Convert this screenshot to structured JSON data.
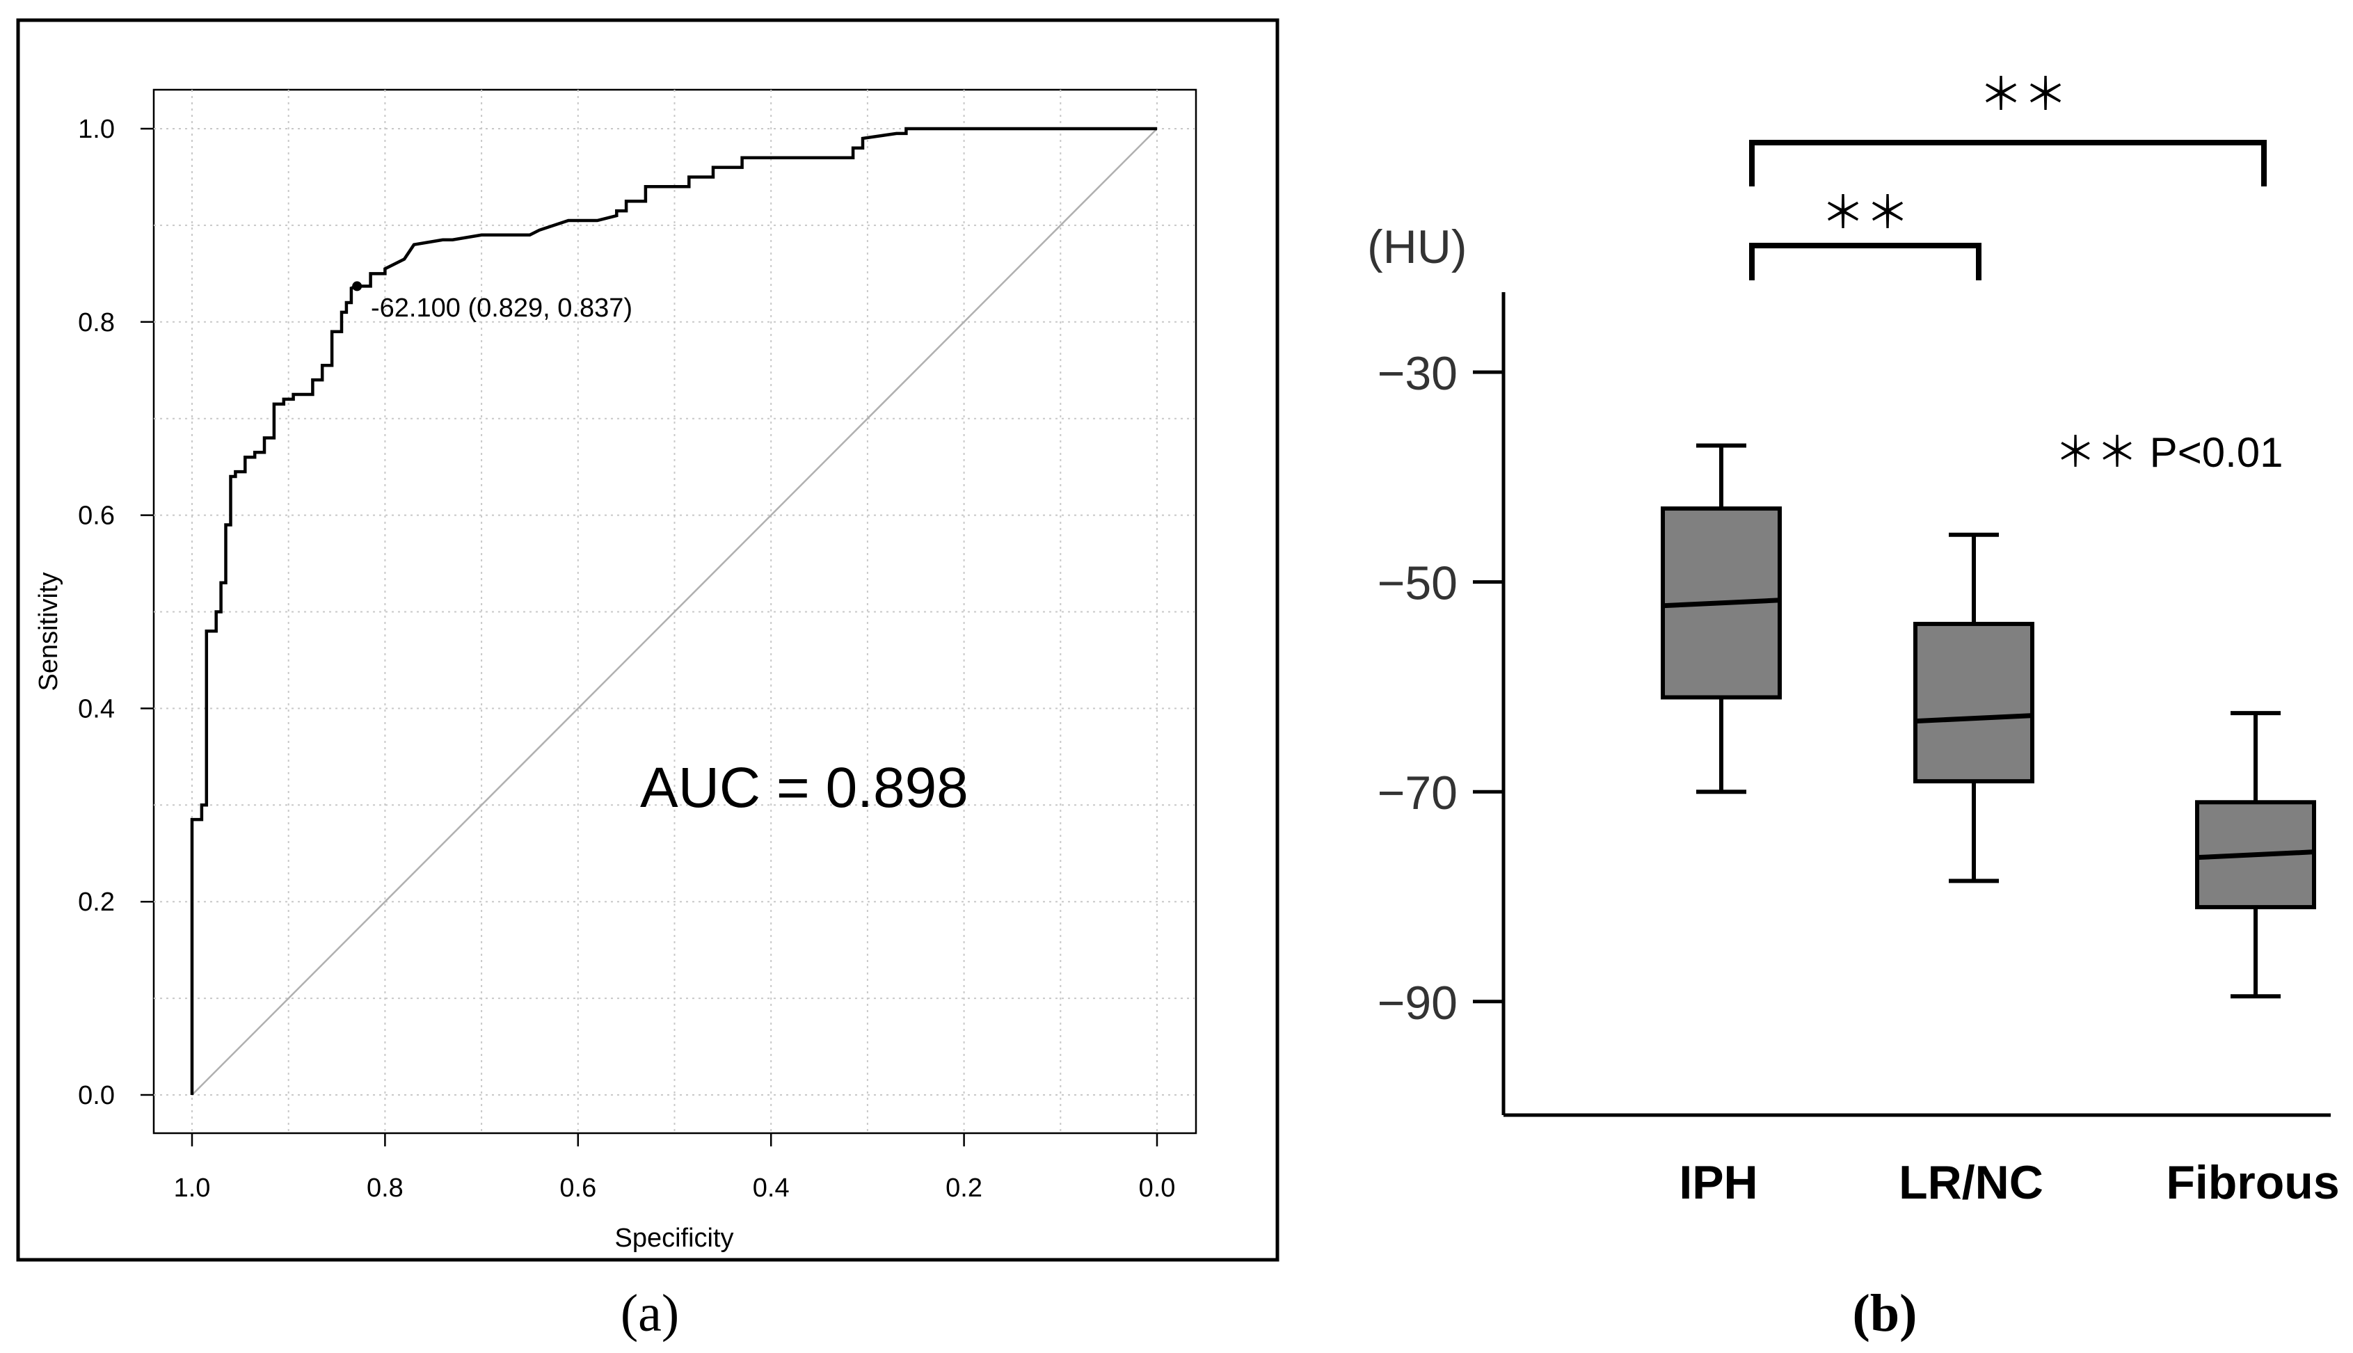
{
  "panel_a": {
    "caption": "(a)",
    "annotation_cutoff": "-62.100 (0.829, 0.837)",
    "auc_text": "AUC = 0.898"
  },
  "panel_b": {
    "caption": "(b)",
    "unit_label": "(HU)",
    "sig_marker_1": "＊＊",
    "sig_marker_2": "＊＊",
    "legend_text": "＊＊ P<0.01"
  },
  "chart_data": [
    {
      "type": "line",
      "xlabel": "Specificity",
      "ylabel": "Sensitivity",
      "xlim": [
        1.0,
        0.0
      ],
      "ylim": [
        0.0,
        1.0
      ],
      "xticks": [
        "1.0",
        "0.8",
        "0.6",
        "0.4",
        "0.2",
        "0.0"
      ],
      "yticks": [
        "0.0",
        "0.2",
        "0.4",
        "0.6",
        "0.8",
        "1.0"
      ],
      "grid": true,
      "x_reversed": true,
      "reference_line": [
        [
          1.0,
          0.0
        ],
        [
          0.0,
          1.0
        ]
      ],
      "cutoff_point": {
        "x": 0.829,
        "y": 0.837
      },
      "auc": 0.898,
      "series": [
        {
          "x": [
            1.0,
            1.0,
            0.99,
            0.99,
            0.985,
            0.985,
            0.975,
            0.975,
            0.97,
            0.97,
            0.965,
            0.965,
            0.96,
            0.96,
            0.955,
            0.955,
            0.945,
            0.945,
            0.935,
            0.935,
            0.925,
            0.925,
            0.915,
            0.915,
            0.905,
            0.905,
            0.895,
            0.895,
            0.875,
            0.875,
            0.865,
            0.865,
            0.855,
            0.855,
            0.845,
            0.845,
            0.84,
            0.84,
            0.835,
            0.835,
            0.829,
            0.815,
            0.815,
            0.8,
            0.8,
            0.78,
            0.77,
            0.74,
            0.73,
            0.7,
            0.65,
            0.64,
            0.61,
            0.58,
            0.56,
            0.56,
            0.55,
            0.55,
            0.53,
            0.53,
            0.485,
            0.485,
            0.46,
            0.46,
            0.43,
            0.43,
            0.315,
            0.315,
            0.305,
            0.305,
            0.27,
            0.26,
            0.26,
            0.0
          ],
          "y": [
            0.0,
            0.285,
            0.285,
            0.3,
            0.3,
            0.48,
            0.48,
            0.5,
            0.5,
            0.53,
            0.53,
            0.59,
            0.59,
            0.64,
            0.64,
            0.645,
            0.645,
            0.66,
            0.66,
            0.665,
            0.665,
            0.68,
            0.68,
            0.715,
            0.715,
            0.72,
            0.72,
            0.725,
            0.725,
            0.74,
            0.74,
            0.755,
            0.755,
            0.79,
            0.79,
            0.81,
            0.81,
            0.82,
            0.82,
            0.835,
            0.837,
            0.837,
            0.85,
            0.85,
            0.855,
            0.865,
            0.88,
            0.885,
            0.885,
            0.89,
            0.89,
            0.895,
            0.905,
            0.905,
            0.91,
            0.915,
            0.915,
            0.925,
            0.925,
            0.94,
            0.94,
            0.95,
            0.95,
            0.96,
            0.96,
            0.97,
            0.97,
            0.98,
            0.98,
            0.99,
            0.995,
            0.995,
            1.0,
            1.0
          ]
        }
      ]
    },
    {
      "type": "box",
      "ylabel": "(HU)",
      "ylim": [
        -102,
        -22
      ],
      "yticks": [
        -30,
        -50,
        -70,
        -90
      ],
      "categories": [
        "IPH",
        "LR/NC",
        "Fibrous"
      ],
      "boxes": [
        {
          "category": "IPH",
          "whisker_high": -37,
          "q3": -43,
          "median": -52,
          "q1": -61,
          "whisker_low": -70
        },
        {
          "category": "LR/NC",
          "whisker_high": -45.5,
          "q3": -54,
          "median": -63,
          "q1": -69,
          "whisker_low": -78.5
        },
        {
          "category": "Fibrous",
          "whisker_high": -62.5,
          "q3": -71,
          "median": -76,
          "q1": -81,
          "whisker_low": -89.5
        }
      ],
      "comparisons": [
        {
          "between": [
            "IPH",
            "LR/NC"
          ],
          "label": "＊＊"
        },
        {
          "between": [
            "IPH",
            "Fibrous"
          ],
          "label": "＊＊"
        }
      ],
      "note": "＊＊ P<0.01"
    }
  ]
}
